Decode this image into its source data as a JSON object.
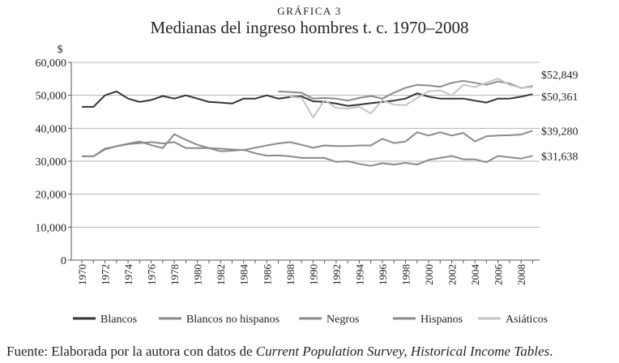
{
  "header": {
    "figure_label": "GRÁFICA 3",
    "title": "Medianas del ingreso hombres t. c. 1970–2008"
  },
  "source": {
    "prefix": "Fuente: Elaborada por la autora con datos de ",
    "italic": "Current Population Survey, Historical Income Tables",
    "suffix": "."
  },
  "chart_data": {
    "type": "line",
    "title": "Medianas del ingreso hombres t. c. 1970–2008",
    "ylabel": "$",
    "xlabel": "",
    "ylim": [
      0,
      60000
    ],
    "yticks": [
      "0",
      "10,000",
      "20,000",
      "30,000",
      "40,000",
      "50,000",
      "60,000"
    ],
    "xticks": [
      "1970",
      "1972",
      "1974",
      "1976",
      "1978",
      "1980",
      "1982",
      "1984",
      "1986",
      "1988",
      "1990",
      "1992",
      "1994",
      "1996",
      "1998",
      "2000",
      "2002",
      "2004",
      "2006",
      "2008"
    ],
    "grid": true,
    "legend_position": "bottom",
    "end_labels": [
      "$52,849",
      "$50,361",
      "$39,280",
      "$31,638"
    ],
    "series": [
      {
        "name": "Blancos",
        "color": "#333333",
        "x": [
          1970,
          1971,
          1972,
          1973,
          1974,
          1975,
          1976,
          1977,
          1978,
          1979,
          1980,
          1981,
          1982,
          1983,
          1984,
          1985,
          1986,
          1987,
          1988,
          1989,
          1990,
          1991,
          1992,
          1993,
          1994,
          1995,
          1996,
          1997,
          1998,
          1999,
          2000,
          2001,
          2002,
          2003,
          2004,
          2005,
          2006,
          2007,
          2008,
          2009
        ],
        "values": [
          46500,
          46500,
          50000,
          51200,
          49000,
          48000,
          48600,
          49800,
          49000,
          50000,
          49000,
          48000,
          47800,
          47500,
          49000,
          49000,
          50000,
          49000,
          49500,
          49700,
          48200,
          48000,
          47500,
          46800,
          47200,
          47600,
          48000,
          48400,
          49000,
          50600,
          49600,
          49000,
          49000,
          49000,
          48400,
          47800,
          49000,
          49000,
          49600,
          50361
        ]
      },
      {
        "name": "Blancos no hispanos",
        "color": "#8a8a8a",
        "x": [
          1987,
          1988,
          1989,
          1990,
          1991,
          1992,
          1993,
          1994,
          1995,
          1996,
          1997,
          1998,
          1999,
          2000,
          2001,
          2002,
          2003,
          2004,
          2005,
          2006,
          2007,
          2008,
          2009
        ],
        "values": [
          51200,
          51000,
          50800,
          49000,
          49200,
          49000,
          48400,
          49200,
          49800,
          49000,
          50800,
          52300,
          53200,
          53000,
          52600,
          53800,
          54400,
          53800,
          53200,
          54200,
          53600,
          52200,
          52849
        ]
      },
      {
        "name": "Negros",
        "color": "#8a8a8a",
        "x": [
          1970,
          1971,
          1972,
          1973,
          1974,
          1975,
          1976,
          1977,
          1978,
          1979,
          1980,
          1981,
          1982,
          1983,
          1984,
          1985,
          1986,
          1987,
          1988,
          1989,
          1990,
          1991,
          1992,
          1993,
          1994,
          1995,
          1996,
          1997,
          1998,
          1999,
          2000,
          2001,
          2002,
          2003,
          2004,
          2005,
          2006,
          2007,
          2008,
          2009
        ],
        "values": [
          31500,
          31500,
          33800,
          34500,
          35200,
          35500,
          35800,
          35400,
          35800,
          34000,
          34000,
          34000,
          33800,
          33600,
          33400,
          34100,
          34800,
          35400,
          35800,
          35000,
          34100,
          34800,
          34600,
          34600,
          34800,
          34800,
          36800,
          35500,
          36000,
          38800,
          37800,
          38800,
          37800,
          38600,
          36000,
          37600,
          37800,
          37900,
          38100,
          39280
        ]
      },
      {
        "name": "Hispanos",
        "color": "#8a8a8a",
        "x": [
          1970,
          1971,
          1972,
          1973,
          1974,
          1975,
          1976,
          1977,
          1978,
          1979,
          1980,
          1981,
          1982,
          1983,
          1984,
          1985,
          1986,
          1987,
          1988,
          1989,
          1990,
          1991,
          1992,
          1993,
          1994,
          1995,
          1996,
          1997,
          1998,
          1999,
          2000,
          2001,
          2002,
          2003,
          2004,
          2005,
          2006,
          2007,
          2008,
          2009
        ],
        "values": [
          31500,
          31500,
          33600,
          34600,
          35300,
          36000,
          34900,
          34000,
          38200,
          36500,
          35000,
          34000,
          33000,
          33200,
          33500,
          32400,
          31700,
          31800,
          31500,
          31000,
          31000,
          31000,
          29800,
          30000,
          29200,
          28600,
          29400,
          29000,
          29500,
          29000,
          30400,
          31000,
          31600,
          30600,
          30600,
          29700,
          31600,
          31200,
          30800,
          31638
        ]
      },
      {
        "name": "Asiáticos",
        "color": "#c4c4c4",
        "x": [
          1988,
          1989,
          1990,
          1991,
          1992,
          1993,
          1994,
          1995,
          1996,
          1997,
          1998,
          1999,
          2000,
          2001,
          2002,
          2003,
          2004,
          2005,
          2006,
          2007,
          2008,
          2009
        ],
        "values": [
          49500,
          49300,
          43300,
          48500,
          46200,
          46000,
          46500,
          44500,
          48500,
          47200,
          47000,
          49200,
          51200,
          51500,
          50000,
          53200,
          52500,
          53800,
          55100,
          53200,
          52300,
          52500
        ]
      }
    ]
  }
}
